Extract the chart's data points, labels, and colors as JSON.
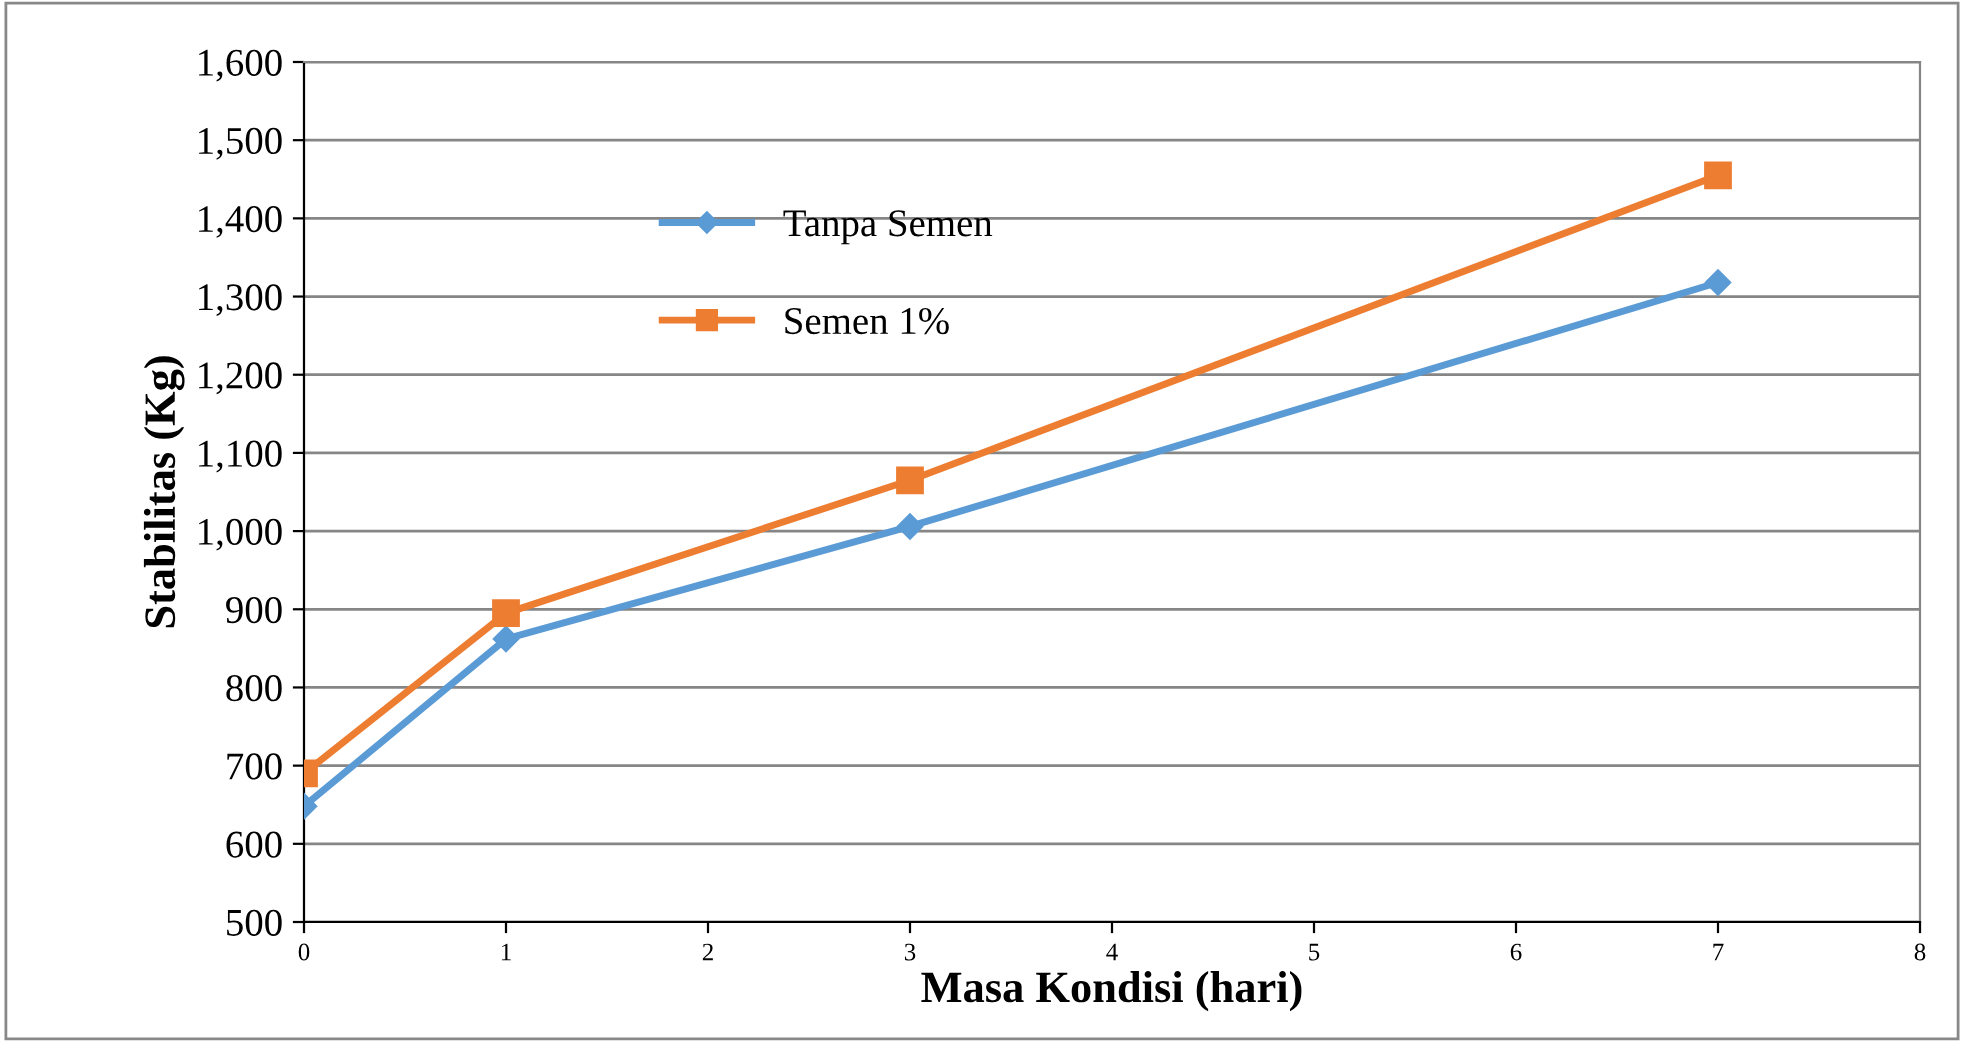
{
  "chart_data": {
    "type": "line",
    "xlabel": "Masa Kondisi (hari)",
    "ylabel": "Stabilitas (Kg)",
    "xlim": [
      0,
      8
    ],
    "xticks": [
      0,
      1,
      2,
      3,
      4,
      5,
      6,
      7,
      8
    ],
    "ylim": [
      500,
      1600
    ],
    "yticks": [
      {
        "value": 500,
        "label": "500"
      },
      {
        "value": 600,
        "label": "600"
      },
      {
        "value": 700,
        "label": "700"
      },
      {
        "value": 800,
        "label": "800"
      },
      {
        "value": 900,
        "label": "900"
      },
      {
        "value": 1000,
        "label": "1,000"
      },
      {
        "value": 1100,
        "label": "1,100"
      },
      {
        "value": 1200,
        "label": "1,200"
      },
      {
        "value": 1300,
        "label": "1,300"
      },
      {
        "value": 1400,
        "label": "1,400"
      },
      {
        "value": 1500,
        "label": "1,500"
      },
      {
        "value": 1600,
        "label": "1,600"
      }
    ],
    "grid": "y",
    "legend": "top left",
    "line_style": "solid",
    "x": [
      0,
      1,
      3,
      7
    ],
    "series": [
      {
        "name": "Tanpa Semen",
        "color": "#5b9bd5",
        "marker": "diamond",
        "values": [
          648,
          862,
          1006,
          1318
        ]
      },
      {
        "name": "Semen 1%",
        "color": "#ed7d31",
        "marker": "square",
        "values": [
          690,
          895,
          1065,
          1455
        ]
      }
    ]
  }
}
